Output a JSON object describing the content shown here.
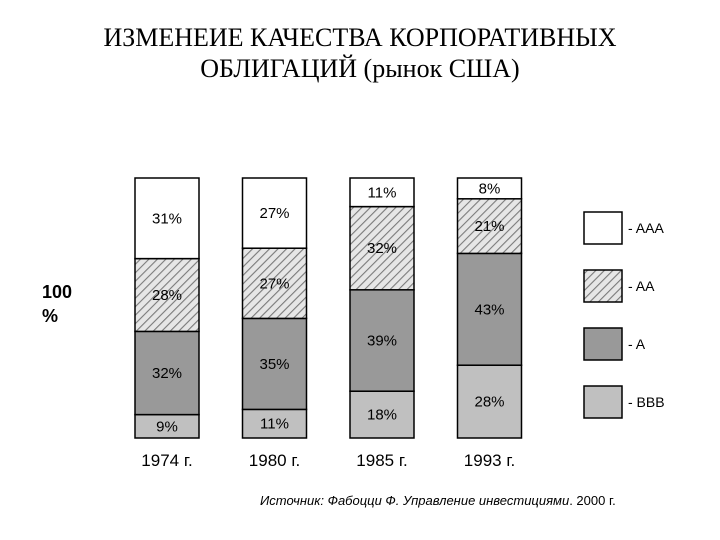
{
  "title_line1": "ИЗМЕНЕИЕ КАЧЕСТВА КОРПОРАТИВНЫХ",
  "title_line2": "ОБЛИГАЦИЙ (рынок США)",
  "axis_note_line1": "100",
  "axis_note_line2": "%",
  "source_label": "Источник",
  "source_italic": ": Фабоцци Ф. Управление инвестициями",
  "source_tail": ". 2000 г.",
  "colors": {
    "AAA": "#ffffff",
    "AA": "#e6e6e6",
    "AA_hatch": "#7a7a7a",
    "A": "#999999",
    "BBB": "#c0c0c0",
    "stroke": "#000000"
  },
  "chart_data": {
    "type": "bar",
    "stacked": true,
    "normalized": true,
    "categories": [
      "1974 г.",
      "1980 г.",
      "1985 г.",
      "1993 г."
    ],
    "series": [
      {
        "name": "- BBB",
        "values": [
          9,
          11,
          18,
          28
        ]
      },
      {
        "name": "- A",
        "values": [
          32,
          35,
          39,
          43
        ]
      },
      {
        "name": "- AA",
        "values": [
          28,
          27,
          32,
          21
        ]
      },
      {
        "name": "- AAA",
        "values": [
          31,
          27,
          11,
          8
        ]
      }
    ],
    "value_labels": [
      [
        "9%",
        "32%",
        "28%",
        "31%"
      ],
      [
        "11%",
        "35%",
        "27%",
        "27%"
      ],
      [
        "18%",
        "39%",
        "32%",
        "11%"
      ],
      [
        "28%",
        "43%",
        "21%",
        "8%"
      ]
    ],
    "legend_position": "right",
    "grid": false
  }
}
